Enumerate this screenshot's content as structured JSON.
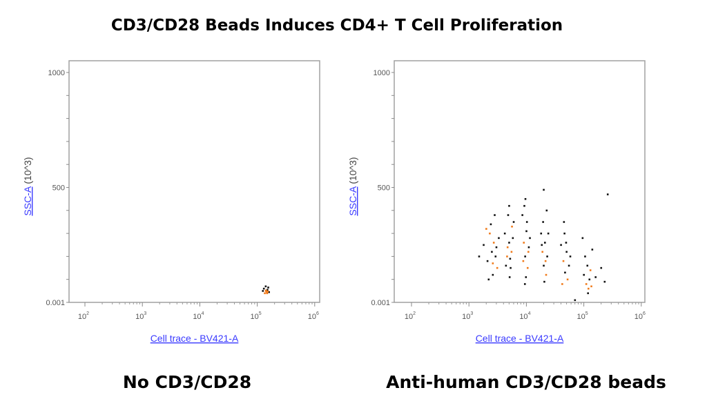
{
  "title": "CD3/CD28 Beads Induces CD4+ T Cell Proliferation",
  "colors": {
    "frame": "#a0a0a0",
    "axis_label": "#3a3aff",
    "event_black": "#111111",
    "event_orange": "#f07a1a"
  },
  "chart_data": [
    {
      "type": "scatter",
      "caption": "No CD3/CD28",
      "xlabel": "Cell trace - BV421-A",
      "ylabel": "SSC-A",
      "ylabel_unit": " (10^3)",
      "x_scale": "log",
      "xlim": [
        100,
        1000000
      ],
      "ylim": [
        0.001,
        1050
      ],
      "x_ticks": [
        {
          "base": "10",
          "exp": "2",
          "value": 100
        },
        {
          "base": "10",
          "exp": "3",
          "value": 1000
        },
        {
          "base": "10",
          "exp": "4",
          "value": 10000
        },
        {
          "base": "10",
          "exp": "5",
          "value": 100000
        },
        {
          "base": "10",
          "exp": "6",
          "value": 1000000
        }
      ],
      "y_ticks": [
        {
          "label": "1000",
          "value": 1000
        },
        {
          "label": "500",
          "value": 500
        },
        {
          "label": "0.001",
          "value": 0.001
        }
      ],
      "point_format": [
        "x",
        "y",
        "color (0=black, 1=orange)"
      ],
      "points": [
        [
          130000,
          60,
          0
        ],
        [
          140000,
          50,
          1
        ],
        [
          145000,
          45,
          1
        ],
        [
          150000,
          55,
          0
        ],
        [
          135000,
          40,
          1
        ],
        [
          155000,
          65,
          0
        ],
        [
          140000,
          70,
          0
        ],
        [
          160000,
          45,
          0
        ],
        [
          125000,
          50,
          0
        ],
        [
          148000,
          40,
          1
        ],
        [
          142000,
          52,
          1
        ],
        [
          152000,
          48,
          1
        ]
      ]
    },
    {
      "type": "scatter",
      "caption": "Anti-human CD3/CD28 beads",
      "xlabel": "Cell trace - BV421-A",
      "ylabel": "SSC-A",
      "ylabel_unit": " (10^3)",
      "x_scale": "log",
      "xlim": [
        100,
        1000000
      ],
      "ylim": [
        0.001,
        1050
      ],
      "x_ticks": [
        {
          "base": "10",
          "exp": "2",
          "value": 100
        },
        {
          "base": "10",
          "exp": "3",
          "value": 1000
        },
        {
          "base": "10",
          "exp": "4",
          "value": 10000
        },
        {
          "base": "10",
          "exp": "5",
          "value": 100000
        },
        {
          "base": "10",
          "exp": "6",
          "value": 1000000
        }
      ],
      "y_ticks": [
        {
          "label": "1000",
          "value": 1000
        },
        {
          "label": "500",
          "value": 500
        },
        {
          "label": "0.001",
          "value": 0.001
        }
      ],
      "point_format": [
        "x",
        "y",
        "color (0=black, 1=orange)"
      ],
      "points": [
        [
          1800,
          250,
          0
        ],
        [
          2100,
          180,
          0
        ],
        [
          2300,
          300,
          1
        ],
        [
          2500,
          220,
          0
        ],
        [
          2600,
          120,
          0
        ],
        [
          2700,
          260,
          1
        ],
        [
          2900,
          200,
          0
        ],
        [
          3100,
          150,
          1
        ],
        [
          2400,
          340,
          0
        ],
        [
          2200,
          100,
          0
        ],
        [
          2800,
          380,
          0
        ],
        [
          3300,
          280,
          0
        ],
        [
          2000,
          320,
          1
        ],
        [
          2600,
          170,
          1
        ],
        [
          3000,
          240,
          0
        ],
        [
          4200,
          300,
          0
        ],
        [
          4600,
          200,
          1
        ],
        [
          5000,
          260,
          0
        ],
        [
          5300,
          150,
          0
        ],
        [
          5600,
          330,
          1
        ],
        [
          4800,
          380,
          0
        ],
        [
          5100,
          110,
          0
        ],
        [
          5500,
          220,
          1
        ],
        [
          4400,
          160,
          0
        ],
        [
          5800,
          280,
          0
        ],
        [
          5000,
          420,
          0
        ],
        [
          4700,
          240,
          1
        ],
        [
          5200,
          190,
          0
        ],
        [
          6000,
          350,
          0
        ],
        [
          8500,
          380,
          0
        ],
        [
          9000,
          260,
          1
        ],
        [
          9500,
          200,
          0
        ],
        [
          10000,
          310,
          0
        ],
        [
          10500,
          150,
          1
        ],
        [
          11000,
          240,
          0
        ],
        [
          9200,
          420,
          0
        ],
        [
          9800,
          110,
          0
        ],
        [
          10200,
          350,
          0
        ],
        [
          8800,
          180,
          1
        ],
        [
          11500,
          280,
          0
        ],
        [
          9600,
          450,
          0
        ],
        [
          10800,
          220,
          1
        ],
        [
          9400,
          80,
          0
        ],
        [
          18000,
          300,
          0
        ],
        [
          19000,
          220,
          1
        ],
        [
          20000,
          160,
          0
        ],
        [
          21000,
          260,
          0
        ],
        [
          22000,
          120,
          1
        ],
        [
          23000,
          200,
          0
        ],
        [
          19500,
          350,
          0
        ],
        [
          20500,
          90,
          0
        ],
        [
          24000,
          300,
          0
        ],
        [
          21500,
          180,
          1
        ],
        [
          22500,
          400,
          0
        ],
        [
          18500,
          250,
          0
        ],
        [
          40000,
          250,
          0
        ],
        [
          44000,
          180,
          1
        ],
        [
          47000,
          130,
          0
        ],
        [
          50000,
          220,
          0
        ],
        [
          52000,
          100,
          1
        ],
        [
          46000,
          300,
          0
        ],
        [
          55000,
          160,
          0
        ],
        [
          42000,
          80,
          1
        ],
        [
          49000,
          260,
          0
        ],
        [
          58000,
          200,
          0
        ],
        [
          45000,
          350,
          0
        ],
        [
          100000,
          120,
          0
        ],
        [
          110000,
          80,
          1
        ],
        [
          115000,
          160,
          0
        ],
        [
          120000,
          60,
          1
        ],
        [
          125000,
          100,
          0
        ],
        [
          105000,
          200,
          0
        ],
        [
          130000,
          140,
          1
        ],
        [
          118000,
          40,
          0
        ],
        [
          140000,
          230,
          0
        ],
        [
          160000,
          110,
          0
        ],
        [
          95000,
          280,
          0
        ],
        [
          200000,
          150,
          0
        ],
        [
          135000,
          70,
          1
        ],
        [
          260000,
          470,
          0
        ],
        [
          20000,
          490,
          0
        ],
        [
          230000,
          90,
          0
        ],
        [
          1500,
          200,
          0
        ],
        [
          70000,
          10,
          0
        ]
      ]
    }
  ]
}
